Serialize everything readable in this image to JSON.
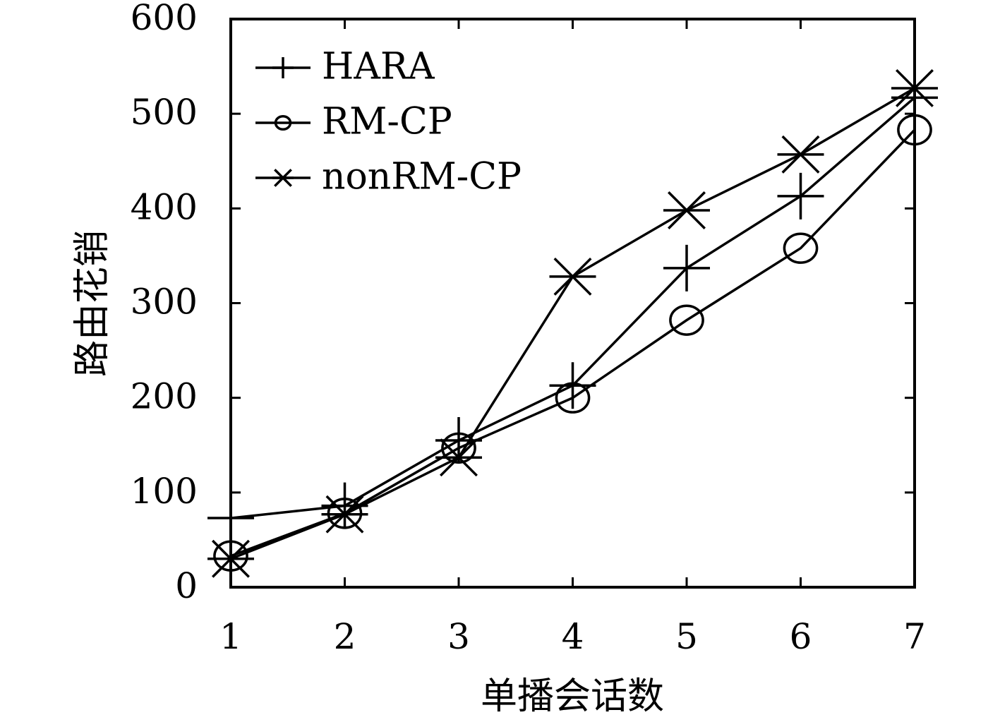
{
  "chart_data": {
    "type": "line",
    "title": "",
    "xlabel": "单播会话数",
    "ylabel": "路由花销",
    "x": [
      1,
      2,
      3,
      4,
      5,
      6,
      7
    ],
    "xlim": [
      1,
      7
    ],
    "ylim": [
      0,
      600
    ],
    "xticks": [
      "1",
      "2",
      "3",
      "4",
      "5",
      "6",
      "7"
    ],
    "yticks": [
      "0",
      "100",
      "200",
      "300",
      "400",
      "500",
      "600"
    ],
    "grid": false,
    "legend_position": "top-left",
    "series": [
      {
        "name": "HARA",
        "marker": "plus",
        "values": [
          73,
          86,
          155,
          213,
          337,
          413,
          517
        ]
      },
      {
        "name": "RM-CP",
        "marker": "circle",
        "values": [
          33,
          78,
          147,
          200,
          282,
          358,
          483
        ]
      },
      {
        "name": "nonRM-CP",
        "marker": "asterisk",
        "values": [
          30,
          77,
          137,
          328,
          398,
          457,
          527
        ]
      }
    ],
    "colors": {
      "line": "#000000",
      "background": "#ffffff"
    }
  }
}
